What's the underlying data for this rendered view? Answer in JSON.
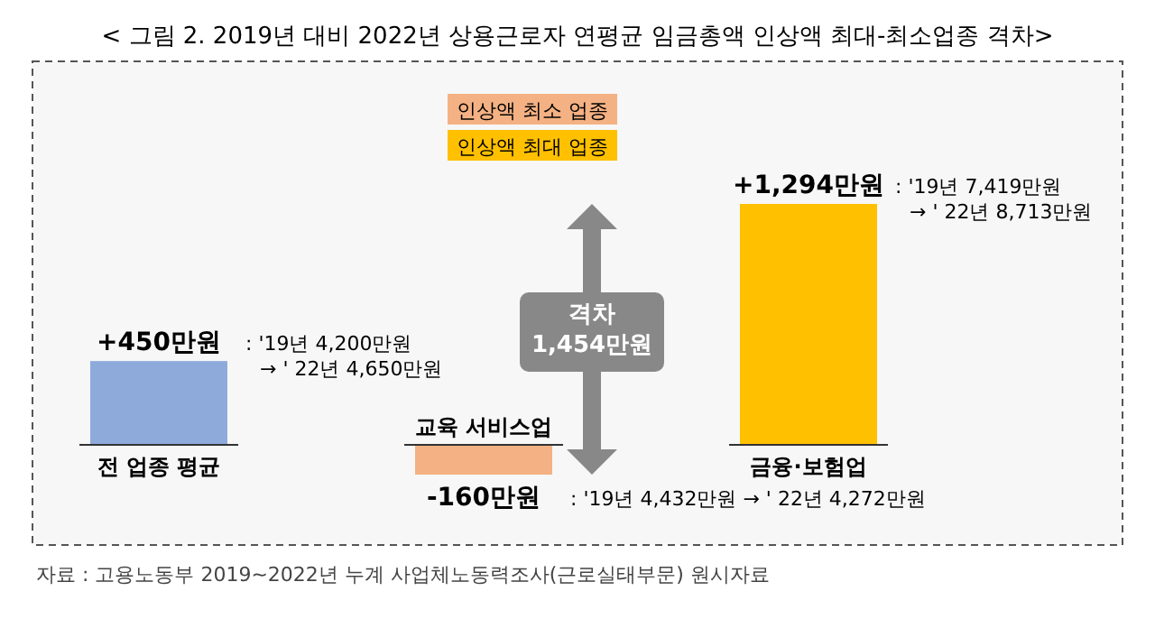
{
  "chart_data": {
    "type": "bar",
    "title": "< 그림 2. 2019년 대비 2022년 상용근로자 연평균 임금총액 인상액 최대-최소업종 격차>",
    "categories": [
      "전 업종 평균",
      "교육 서비스업",
      "금융·보험업"
    ],
    "series": [
      {
        "color": "#8eaadb",
        "values": [
          450,
          null,
          null
        ],
        "value_labels": [
          "+450만원",
          null,
          null
        ]
      },
      {
        "name": "인상액 최소 업종",
        "color": "#f4b183",
        "values": [
          null,
          -160,
          null
        ],
        "value_labels": [
          null,
          "-160만원",
          null
        ]
      },
      {
        "name": "인상액 최대 업종",
        "color": "#ffc000",
        "values": [
          null,
          null,
          1294
        ],
        "value_labels": [
          null,
          null,
          "+1,294만원"
        ]
      }
    ],
    "legend": "top",
    "ref_lines": [
      {
        "axis": "y",
        "value": 0
      }
    ],
    "annotations": [
      "격차 1,454만원",
      ": '19년 4,200만원 → ' 22년 4,650만원",
      ": '19년 4,432만원 → ' 22년 4,272만원",
      ": '19년 7,419만원 → ' 22년 8,713만원",
      "자료 : 고용노동부 2019~2022년 누계 사업체노동력조사(근로실태부문) 원시자료"
    ]
  }
}
